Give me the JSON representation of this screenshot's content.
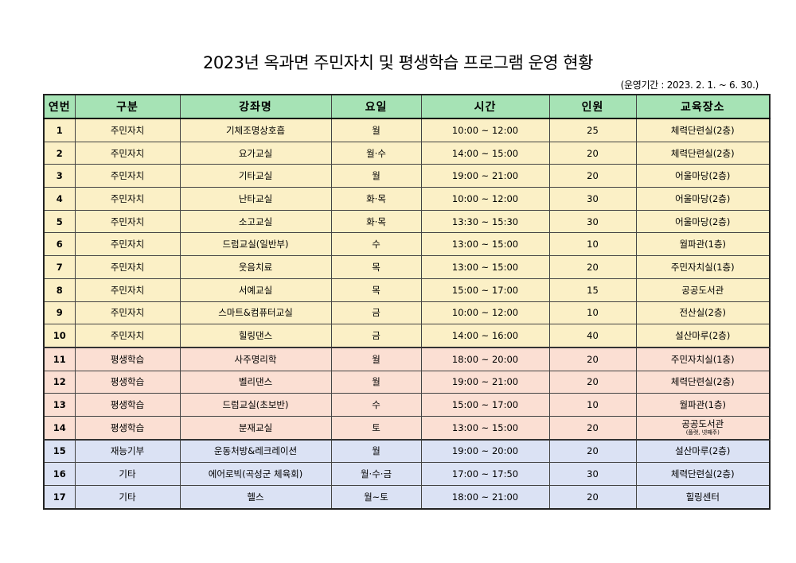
{
  "title": "2023년 옥과면 주민자치 및 평생학습 프로그램 운영 현황",
  "period": "(운영기간 : 2023. 2. 1. ~ 6. 30.)",
  "colors": {
    "header_bg": "#a6e3b5",
    "group_resident_bg": "#fbf0c6",
    "group_lifelong_bg": "#fbdfd3",
    "group_other_bg": "#dbe2f4"
  },
  "table": {
    "headers": [
      "연번",
      "구분",
      "강좌명",
      "요일",
      "시간",
      "인원",
      "교육장소"
    ],
    "rows": [
      {
        "no": "1",
        "category": "주민자치",
        "course": "기체조명상호흡",
        "day": "월",
        "time": "10:00 ~ 12:00",
        "people": "25",
        "place": "체력단련실(2층)"
      },
      {
        "no": "2",
        "category": "주민자치",
        "course": "요가교실",
        "day": "월·수",
        "time": "14:00 ~ 15:00",
        "people": "20",
        "place": "체력단련실(2층)"
      },
      {
        "no": "3",
        "category": "주민자치",
        "course": "기타교실",
        "day": "월",
        "time": "19:00 ~ 21:00",
        "people": "20",
        "place": "어울마당(2층)"
      },
      {
        "no": "4",
        "category": "주민자치",
        "course": "난타교실",
        "day": "화·목",
        "time": "10:00 ~ 12:00",
        "people": "30",
        "place": "어울마당(2층)"
      },
      {
        "no": "5",
        "category": "주민자치",
        "course": "소고교실",
        "day": "화·목",
        "time": "13:30 ~ 15:30",
        "people": "30",
        "place": "어울마당(2층)"
      },
      {
        "no": "6",
        "category": "주민자치",
        "course": "드럼교실(일반부)",
        "day": "수",
        "time": "13:00 ~ 15:00",
        "people": "10",
        "place": "월파관(1층)"
      },
      {
        "no": "7",
        "category": "주민자치",
        "course": "웃음치료",
        "day": "목",
        "time": "13:00 ~ 15:00",
        "people": "20",
        "place": "주민자치실(1층)"
      },
      {
        "no": "8",
        "category": "주민자치",
        "course": "서예교실",
        "day": "목",
        "time": "15:00 ~ 17:00",
        "people": "15",
        "place": "공공도서관"
      },
      {
        "no": "9",
        "category": "주민자치",
        "course": "스마트&컴퓨터교실",
        "day": "금",
        "time": "10:00 ~ 12:00",
        "people": "10",
        "place": "전산실(2층)"
      },
      {
        "no": "10",
        "category": "주민자치",
        "course": "힐링댄스",
        "day": "금",
        "time": "14:00 ~ 16:00",
        "people": "40",
        "place": "설산마루(2층)"
      },
      {
        "no": "11",
        "category": "평생학습",
        "course": "사주명리학",
        "day": "월",
        "time": "18:00 ~ 20:00",
        "people": "20",
        "place": "주민자치실(1층)"
      },
      {
        "no": "12",
        "category": "평생학습",
        "course": "벨리댄스",
        "day": "월",
        "time": "19:00 ~ 21:00",
        "people": "20",
        "place": "체력단련실(2층)"
      },
      {
        "no": "13",
        "category": "평생학습",
        "course": "드럼교실(초보반)",
        "day": "수",
        "time": "15:00 ~ 17:00",
        "people": "10",
        "place": "월파관(1층)"
      },
      {
        "no": "14",
        "category": "평생학습",
        "course": "분재교실",
        "day": "토",
        "time": "13:00 ~ 15:00",
        "people": "20",
        "place": "공공도서관",
        "place_sub": "(플랫, 넷째주)"
      },
      {
        "no": "15",
        "category": "재능기부",
        "course": "운동처방&레크레이션",
        "day": "월",
        "time": "19:00 ~ 20:00",
        "people": "20",
        "place": "설산마루(2층)"
      },
      {
        "no": "16",
        "category": "기타",
        "course": "에어로빅(곡성군 체육회)",
        "day": "월·수·금",
        "time": "17:00 ~ 17:50",
        "people": "30",
        "place": "체력단련실(2층)"
      },
      {
        "no": "17",
        "category": "기타",
        "course": "헬스",
        "day": "월~토",
        "time": "18:00 ~ 21:00",
        "people": "20",
        "place": "힐링센터"
      }
    ]
  }
}
